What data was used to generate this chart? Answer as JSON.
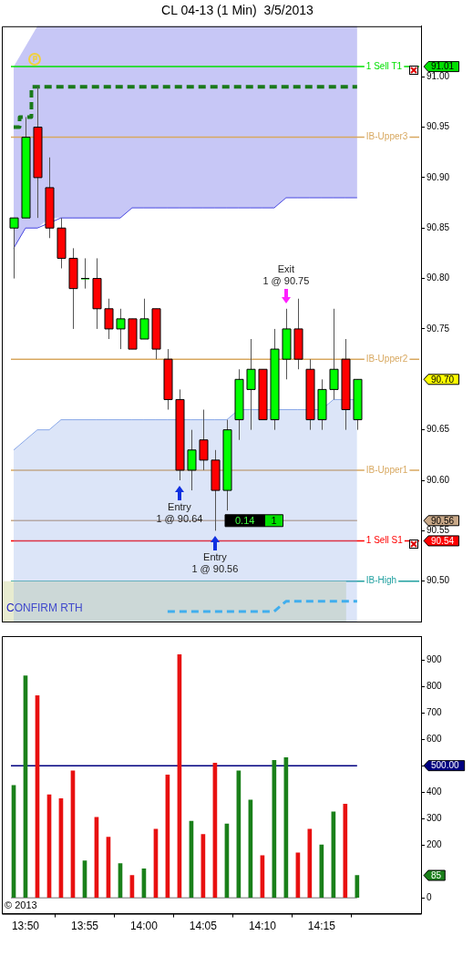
{
  "chart_data": [
    {
      "type": "candlestick",
      "title": "CL 04-13 (1 Min)  3/5/2013",
      "tick_labels": "y",
      "x": [
        13.8167,
        13.8333,
        13.85,
        13.8667,
        13.8833,
        13.9,
        13.9167,
        13.9333,
        13.95,
        13.9667,
        13.9833,
        14,
        14.0167,
        14.0333,
        14.05,
        14.0667,
        14.0833,
        14.1,
        14.1167,
        14.1333,
        14.15,
        14.1667,
        14.1833,
        14.2,
        14.2167,
        14.2333,
        14.25,
        14.2667,
        14.2833,
        14.3
      ],
      "xlim": [
        13.8,
        14.39
      ],
      "ylim": [
        90.46,
        91.05
      ],
      "yticks": [
        {
          "value": 90.5,
          "label": "90.50"
        },
        {
          "value": 90.55,
          "label": "90.55"
        },
        {
          "value": 90.6,
          "label": "90.60"
        },
        {
          "value": 90.65,
          "label": "90.65"
        },
        {
          "value": 90.75,
          "label": "90.75"
        },
        {
          "value": 90.8,
          "label": "90.80"
        },
        {
          "value": 90.85,
          "label": "90.85"
        },
        {
          "value": 90.9,
          "label": "90.90"
        },
        {
          "value": 90.95,
          "label": "90.95"
        },
        {
          "value": 91.0,
          "label": "91.00"
        }
      ],
      "ohlc": [
        [
          90.85,
          90.86,
          90.8,
          90.86
        ],
        [
          90.86,
          90.96,
          90.86,
          90.94
        ],
        [
          90.95,
          90.99,
          90.86,
          90.9
        ],
        [
          90.89,
          90.92,
          90.84,
          90.85
        ],
        [
          90.85,
          90.86,
          90.81,
          90.82
        ],
        [
          90.82,
          90.83,
          90.75,
          90.79
        ],
        [
          90.8,
          90.82,
          90.79,
          90.8
        ],
        [
          90.8,
          90.82,
          90.75,
          90.77
        ],
        [
          90.77,
          90.78,
          90.74,
          90.75
        ],
        [
          90.75,
          90.77,
          90.73,
          90.76
        ],
        [
          90.76,
          90.76,
          90.73,
          90.73
        ],
        [
          90.74,
          90.78,
          90.74,
          90.76
        ],
        [
          90.77,
          90.77,
          90.72,
          90.73
        ],
        [
          90.72,
          90.73,
          90.67,
          90.68
        ],
        [
          90.68,
          90.69,
          90.6,
          90.61
        ],
        [
          90.61,
          90.65,
          90.59,
          90.63
        ],
        [
          90.64,
          90.67,
          90.61,
          90.62
        ],
        [
          90.62,
          90.63,
          90.55,
          90.59
        ],
        [
          90.59,
          90.66,
          90.57,
          90.65
        ],
        [
          90.66,
          90.71,
          90.64,
          90.7
        ],
        [
          90.69,
          90.74,
          90.65,
          90.71
        ],
        [
          90.71,
          90.71,
          90.66,
          90.66
        ],
        [
          90.66,
          90.75,
          90.65,
          90.73
        ],
        [
          90.72,
          90.77,
          90.7,
          90.75
        ],
        [
          90.75,
          90.78,
          90.71,
          90.72
        ],
        [
          90.71,
          90.72,
          90.65,
          90.66
        ],
        [
          90.66,
          90.7,
          90.65,
          90.69
        ],
        [
          90.69,
          90.77,
          90.68,
          90.71
        ],
        [
          90.72,
          90.74,
          90.65,
          90.67
        ],
        [
          90.66,
          90.7,
          90.65,
          90.7
        ]
      ],
      "colors": [
        "#00ff00",
        "#00ff00",
        "#ff0000",
        "#ff0000",
        "#ff0000",
        "#ff0000",
        "#00ff00",
        "#ff0000",
        "#ff0000",
        "#00ff00",
        "#ff0000",
        "#00ff00",
        "#ff0000",
        "#ff0000",
        "#ff0000",
        "#00ff00",
        "#ff0000",
        "#ff0000",
        "#00ff00",
        "#00ff00",
        "#00ff00",
        "#ff0000",
        "#00ff00",
        "#00ff00",
        "#ff0000",
        "#ff0000",
        "#00ff00",
        "#00ff00",
        "#ff0000",
        "#00ff00"
      ],
      "series": [
        {
          "type": "line",
          "color": "#4646e0",
          "values": [
            90.83,
            90.85,
            90.85,
            null,
            90.86,
            90.86,
            90.86,
            90.86,
            90.86,
            90.86,
            90.87,
            90.87,
            90.87,
            90.87,
            90.87,
            90.87,
            90.87,
            90.87,
            90.87,
            90.87,
            90.87,
            90.87,
            90.87,
            90.88,
            90.88,
            90.88,
            90.88,
            90.88,
            90.88,
            90.88
          ],
          "lower": [
            90.83,
            90.85,
            90.85,
            90.86,
            90.86,
            90.86,
            90.86,
            90.86,
            90.86,
            90.86,
            90.87,
            90.87,
            90.87,
            90.87,
            90.87,
            90.87,
            90.87,
            90.87,
            90.87,
            90.87,
            90.87,
            90.87,
            90.87,
            90.88,
            90.88,
            90.88,
            90.88,
            90.88,
            90.88,
            90.88
          ],
          "upper": [
            91.01,
            91.03,
            91.05,
            91.05,
            91.05,
            91.05,
            91.05,
            91.05,
            91.05,
            91.05,
            91.05,
            91.05,
            91.05,
            91.05,
            91.05,
            91.05,
            91.05,
            91.05,
            91.05,
            91.05,
            91.05,
            91.05,
            91.05,
            91.05,
            91.05,
            91.05,
            91.05,
            91.05,
            91.05,
            91.05
          ]
        },
        {
          "type": "area",
          "color": "#8aa8e8",
          "values": [
            90.63,
            90.64,
            90.65,
            90.65,
            90.66,
            90.66,
            90.66,
            90.66,
            90.66,
            90.66,
            90.66,
            90.66,
            90.66,
            90.66,
            90.66,
            90.66,
            90.66,
            90.66,
            90.66,
            90.67,
            90.67,
            90.67,
            null,
            null,
            90.67,
            90.67,
            90.67,
            90.68,
            null,
            90.68
          ]
        },
        {
          "type": "step",
          "color": "#1a7a1a",
          "line_style": "dashed",
          "values": [
            90.95,
            90.96,
            90.99,
            90.99,
            90.99,
            90.99,
            90.99,
            90.99,
            90.99,
            90.99,
            90.99,
            90.99,
            90.99,
            90.99,
            90.99,
            90.99,
            90.99,
            90.99,
            90.99,
            90.99,
            90.99,
            90.99,
            90.99,
            90.99,
            90.99,
            90.99,
            90.99,
            90.99,
            90.99,
            90.99
          ]
        },
        {
          "type": "line",
          "color": "#20b0f0",
          "line_style": "dashed",
          "values": [
            null,
            null,
            null,
            null,
            null,
            null,
            null,
            null,
            null,
            null,
            null,
            null,
            null,
            90.47,
            90.47,
            90.47,
            90.47,
            90.47,
            90.47,
            90.47,
            90.47,
            90.47,
            90.47,
            90.48,
            90.48,
            90.48,
            90.48,
            90.48,
            90.48,
            90.48
          ]
        }
      ],
      "ref_lines": [
        {
          "axis": "y",
          "value": 91.01,
          "label": "1 Sell T1",
          "color": "#00e000"
        },
        {
          "axis": "y",
          "value": 90.54,
          "label": "1 Sell S1",
          "color": "#ff0000"
        },
        {
          "axis": "y",
          "value": 90.56,
          "color": "#c8a888"
        },
        {
          "axis": "y",
          "value": 90.94,
          "label": "IB-Upper3",
          "color": "#d8a860"
        },
        {
          "axis": "y",
          "value": 90.72,
          "label": "IB-Upper2",
          "color": "#d8a860"
        },
        {
          "axis": "y",
          "value": 90.61,
          "label": "IB-Upper1",
          "color": "#d8a860"
        },
        {
          "axis": "y",
          "value": 90.5,
          "label": "IB-High",
          "color": "#20a0a0"
        }
      ],
      "bands": [
        {
          "axis": "y",
          "from": 90.46,
          "to": 90.5,
          "label": "CONFIRM RTH",
          "color": "#e8ecd0"
        }
      ],
      "annotations": [
        "Entry\n1 @ 90.64",
        "Entry\n1 @ 90.56",
        "Exit\n1 @ 90.75",
        "0.14 1",
        "91.01",
        "90.70",
        "90.56",
        "90.54"
      ]
    },
    {
      "type": "bar",
      "x": [
        13.8167,
        13.8333,
        13.85,
        13.8667,
        13.8833,
        13.9,
        13.9167,
        13.9333,
        13.95,
        13.9667,
        13.9833,
        14,
        14.0167,
        14.0333,
        14.05,
        14.0667,
        14.0833,
        14.1,
        14.1167,
        14.1333,
        14.15,
        14.1667,
        14.1833,
        14.2,
        14.2167,
        14.2333,
        14.25,
        14.2667,
        14.2833,
        14.3
      ],
      "xlim": [
        13.8,
        14.39
      ],
      "xticks": [
        {
          "value": 13.8333,
          "label": "13:50"
        },
        {
          "value": 13.9167,
          "label": "13:55"
        },
        {
          "value": 14,
          "label": "14:00"
        },
        {
          "value": 14.0833,
          "label": "14:05"
        },
        {
          "value": 14.1667,
          "label": "14:10"
        },
        {
          "value": 14.25,
          "label": "14:15"
        }
      ],
      "ylim": [
        -60,
        990
      ],
      "yticks": [
        0,
        200,
        300,
        400,
        {
          "value": 500,
          "label": null
        },
        600,
        700,
        800,
        900
      ],
      "values": [
        425,
        840,
        765,
        390,
        375,
        480,
        140,
        305,
        230,
        130,
        85,
        110,
        260,
        465,
        920,
        290,
        240,
        510,
        280,
        480,
        370,
        160,
        520,
        530,
        170,
        260,
        200,
        325,
        355,
        85
      ],
      "colors": [
        "#1a801a",
        "#1a801a",
        "#e81010",
        "#e81010",
        "#e81010",
        "#e81010",
        "#1a801a",
        "#e81010",
        "#e81010",
        "#1a801a",
        "#e81010",
        "#1a801a",
        "#e81010",
        "#e81010",
        "#e81010",
        "#1a801a",
        "#e81010",
        "#e81010",
        "#1a801a",
        "#1a801a",
        "#1a801a",
        "#e81010",
        "#1a801a",
        "#1a801a",
        "#e81010",
        "#e81010",
        "#1a801a",
        "#1a801a",
        "#e81010",
        "#1a801a"
      ],
      "ref_lines": [
        {
          "axis": "y",
          "value": 500,
          "color": "#000080"
        },
        {
          "axis": "y",
          "value": 0,
          "color": "#a0a0a0"
        }
      ],
      "annotations": [
        "© 2013",
        "500.00",
        "85"
      ]
    }
  ]
}
